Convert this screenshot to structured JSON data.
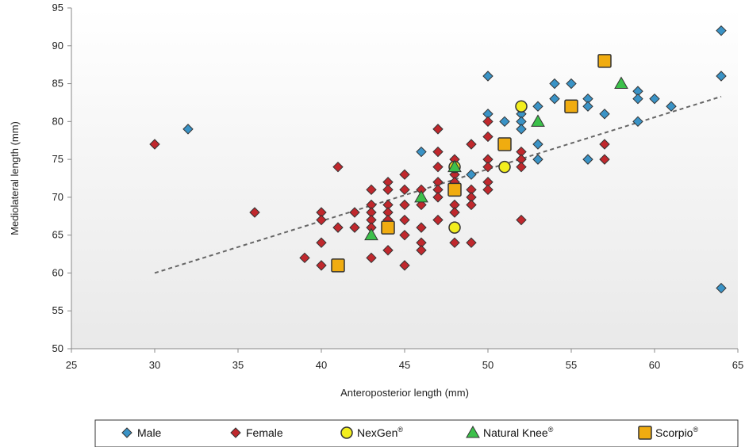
{
  "chart_data": {
    "type": "scatter",
    "xlabel": "Anteroposterior length (mm)",
    "ylabel": "Mediolateral length (mm)",
    "xlim": [
      25,
      65
    ],
    "ylim": [
      50,
      95
    ],
    "xticks": [
      25,
      30,
      35,
      40,
      45,
      50,
      55,
      60,
      65
    ],
    "yticks": [
      50,
      55,
      60,
      65,
      70,
      75,
      80,
      85,
      90,
      95
    ],
    "legend_position": "bottom",
    "trendline": {
      "style": "dashed",
      "points": [
        [
          30,
          60
        ],
        [
          64,
          83.3
        ]
      ]
    },
    "series": [
      {
        "name": "Male",
        "marker": "diamond",
        "color": "#3a93c6",
        "points": [
          [
            32,
            79
          ],
          [
            46,
            76
          ],
          [
            49,
            73
          ],
          [
            50,
            86
          ],
          [
            50,
            81
          ],
          [
            51,
            80
          ],
          [
            52,
            81
          ],
          [
            52,
            80
          ],
          [
            52,
            79
          ],
          [
            53,
            82
          ],
          [
            53,
            77
          ],
          [
            53,
            75
          ],
          [
            54,
            85
          ],
          [
            54,
            83
          ],
          [
            55,
            85
          ],
          [
            56,
            83
          ],
          [
            56,
            82
          ],
          [
            56,
            75
          ],
          [
            57,
            81
          ],
          [
            59,
            84
          ],
          [
            59,
            83
          ],
          [
            59,
            80
          ],
          [
            60,
            83
          ],
          [
            61,
            82
          ],
          [
            64,
            92
          ],
          [
            64,
            86
          ],
          [
            64,
            58
          ]
        ]
      },
      {
        "name": "Female",
        "marker": "diamond",
        "color": "#c0282d",
        "points": [
          [
            30,
            77
          ],
          [
            36,
            68
          ],
          [
            39,
            62
          ],
          [
            40,
            68
          ],
          [
            40,
            67
          ],
          [
            40,
            64
          ],
          [
            40,
            61
          ],
          [
            41,
            74
          ],
          [
            41,
            66
          ],
          [
            42,
            68
          ],
          [
            42,
            66
          ],
          [
            43,
            71
          ],
          [
            43,
            69
          ],
          [
            43,
            68
          ],
          [
            43,
            67
          ],
          [
            43,
            66
          ],
          [
            43,
            62
          ],
          [
            44,
            72
          ],
          [
            44,
            71
          ],
          [
            44,
            69
          ],
          [
            44,
            68
          ],
          [
            44,
            67
          ],
          [
            44,
            63
          ],
          [
            45,
            73
          ],
          [
            45,
            71
          ],
          [
            45,
            69
          ],
          [
            45,
            67
          ],
          [
            45,
            65
          ],
          [
            45,
            61
          ],
          [
            46,
            71
          ],
          [
            46,
            69
          ],
          [
            46,
            66
          ],
          [
            46,
            64
          ],
          [
            46,
            63
          ],
          [
            47,
            79
          ],
          [
            47,
            76
          ],
          [
            47,
            74
          ],
          [
            47,
            72
          ],
          [
            47,
            71
          ],
          [
            47,
            70
          ],
          [
            47,
            67
          ],
          [
            48,
            75
          ],
          [
            48,
            73
          ],
          [
            48,
            72
          ],
          [
            48,
            69
          ],
          [
            48,
            68
          ],
          [
            48,
            64
          ],
          [
            49,
            77
          ],
          [
            49,
            71
          ],
          [
            49,
            70
          ],
          [
            49,
            69
          ],
          [
            49,
            64
          ],
          [
            50,
            80
          ],
          [
            50,
            78
          ],
          [
            50,
            75
          ],
          [
            50,
            74
          ],
          [
            50,
            72
          ],
          [
            50,
            71
          ],
          [
            52,
            76
          ],
          [
            52,
            75
          ],
          [
            52,
            74
          ],
          [
            52,
            67
          ],
          [
            57,
            77
          ],
          [
            57,
            75
          ]
        ]
      },
      {
        "name": "NexGen",
        "sup": "®",
        "marker": "circle",
        "color": "#f2ee1e",
        "points": [
          [
            48,
            74
          ],
          [
            48,
            66
          ],
          [
            51,
            74
          ],
          [
            52,
            82
          ]
        ]
      },
      {
        "name": "Natural Knee",
        "sup": "®",
        "marker": "triangle",
        "color": "#3cc04a",
        "points": [
          [
            43,
            65
          ],
          [
            46,
            70
          ],
          [
            48,
            74
          ],
          [
            53,
            80
          ],
          [
            58,
            85
          ]
        ]
      },
      {
        "name": "Scorpio",
        "sup": "®",
        "marker": "square",
        "color": "#f0ac10",
        "points": [
          [
            41,
            61
          ],
          [
            44,
            66
          ],
          [
            48,
            71
          ],
          [
            51,
            77
          ],
          [
            55,
            82
          ],
          [
            57,
            88
          ]
        ]
      }
    ]
  }
}
